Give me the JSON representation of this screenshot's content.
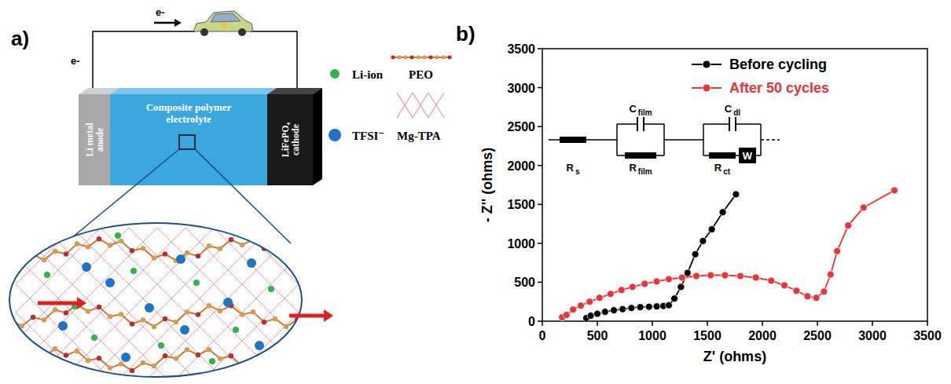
{
  "panel_labels": [
    "a)",
    "b)"
  ],
  "diagram": {
    "electron_labels": [
      "e-",
      "e-"
    ],
    "cell": {
      "anode": "Li metal anode",
      "electrolyte": "Composite polymer electrolyte",
      "cathode": "LiFePO₄ cathode"
    },
    "legend": [
      {
        "label": "Li-ion"
      },
      {
        "label": "TFSI⁻"
      },
      {
        "label": "PEO"
      },
      {
        "label": "Mg-TPA"
      }
    ]
  },
  "circuit": {
    "elements": [
      {
        "text": "R",
        "sub": "s"
      },
      {
        "text": "C",
        "sub": "film"
      },
      {
        "text": "R",
        "sub": "film"
      },
      {
        "text": "C",
        "sub": "dl"
      },
      {
        "text": "R",
        "sub": "ct"
      },
      {
        "text": "W"
      }
    ]
  },
  "chart_data": {
    "type": "line",
    "x_label": "Z'  (ohms)",
    "y_label": "- Z''  (ohms)",
    "xlim": [
      0,
      3500
    ],
    "ylim": [
      0,
      3500
    ],
    "xticks": [
      0,
      500,
      1000,
      1500,
      2000,
      2500,
      3000,
      3500
    ],
    "yticks": [
      0,
      500,
      1000,
      1500,
      2000,
      2500,
      3000,
      3500
    ],
    "grid": false,
    "legend": "upper right",
    "series": [
      {
        "name": "Before cycling",
        "color": "#000000",
        "marker": "circle",
        "x": [
          400,
          440,
          500,
          570,
          650,
          730,
          810,
          890,
          970,
          1040,
          1100,
          1150,
          1200,
          1260,
          1320,
          1390,
          1460,
          1540,
          1640,
          1760
        ],
        "values": [
          40,
          70,
          95,
          120,
          140,
          155,
          170,
          180,
          185,
          190,
          195,
          205,
          290,
          440,
          620,
          860,
          1030,
          1180,
          1400,
          1630
        ]
      },
      {
        "name": "After 50 cycles",
        "color": "#e8343a",
        "marker": "circle",
        "x": [
          180,
          220,
          280,
          350,
          430,
          520,
          620,
          720,
          820,
          930,
          1040,
          1150,
          1270,
          1400,
          1530,
          1660,
          1800,
          1940,
          2080,
          2200,
          2310,
          2410,
          2490,
          2560,
          2620,
          2680,
          2780,
          2920,
          3200
        ],
        "values": [
          50,
          80,
          150,
          200,
          250,
          300,
          350,
          400,
          440,
          480,
          510,
          540,
          560,
          580,
          590,
          590,
          580,
          560,
          520,
          460,
          390,
          320,
          300,
          380,
          600,
          900,
          1230,
          1460,
          1680
        ]
      }
    ]
  }
}
